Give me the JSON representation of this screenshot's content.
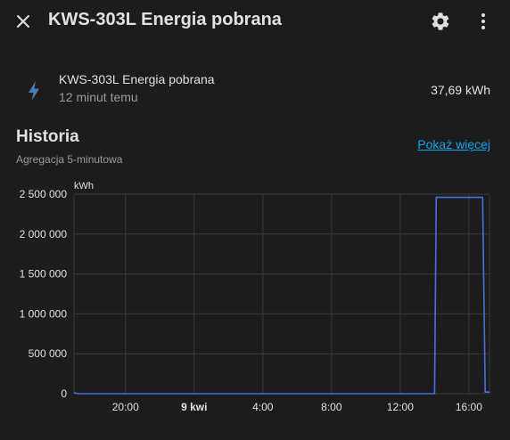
{
  "header": {
    "title": "KWS-303L Energia pobrana",
    "close_icon": "close-icon",
    "settings_icon": "gear-icon",
    "more_icon": "more-vertical-icon"
  },
  "entity": {
    "icon": "flash-icon",
    "name": "KWS-303L Energia pobrana",
    "last_changed": "12 minut temu",
    "value": "37,69 kWh"
  },
  "history": {
    "title": "Historia",
    "subtitle": "Agregacja 5-minutowa",
    "show_more_label": "Pokaż więcej"
  },
  "colors": {
    "background": "#1c1c1c",
    "accent_link": "#03a9f4",
    "series_line": "#4a6fdc",
    "entity_icon": "#4a7cb5",
    "grid": "#3a3a3a"
  },
  "chart_data": {
    "type": "line",
    "ylabel": "kWh",
    "ylim": [
      0,
      2500000
    ],
    "yticks": [
      0,
      500000,
      1000000,
      1500000,
      2000000,
      2500000
    ],
    "ytick_labels": [
      "0",
      "500 000",
      "1 000 000",
      "1 500 000",
      "2 000 000",
      "2 500 000"
    ],
    "xlim": [
      17.0,
      41.2
    ],
    "xticks": [
      {
        "x": 20,
        "label": "20:00",
        "bold": false
      },
      {
        "x": 24,
        "label": "9 kwi",
        "bold": true
      },
      {
        "x": 28,
        "label": "4:00",
        "bold": false
      },
      {
        "x": 32,
        "label": "8:00",
        "bold": false
      },
      {
        "x": 36,
        "label": "12:00",
        "bold": false
      },
      {
        "x": 40,
        "label": "16:00",
        "bold": false
      }
    ],
    "series": [
      {
        "points": [
          [
            17.0,
            12000
          ],
          [
            17.25,
            0
          ],
          [
            38.0,
            0
          ],
          [
            38.1,
            2460000
          ],
          [
            40.8,
            2460000
          ],
          [
            40.95,
            20000
          ],
          [
            41.2,
            20000
          ]
        ]
      }
    ],
    "grid": true
  }
}
